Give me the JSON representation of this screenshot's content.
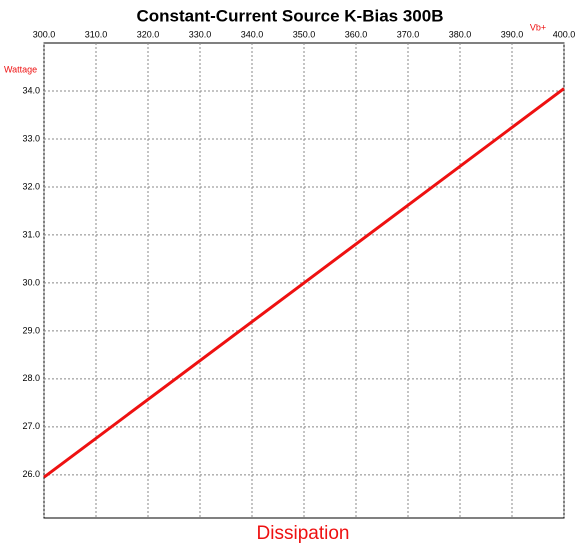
{
  "chart_data": {
    "type": "line",
    "title": "Constant-Current Source K-Bias 300B",
    "x_label": "Vb+",
    "y_label": "Wattage",
    "footer": "Dissipation",
    "x": [
      300,
      350,
      400
    ],
    "series": [
      {
        "name": "Dissipation",
        "color": "#ee1111",
        "values": [
          25.95,
          30.0,
          34.05
        ]
      }
    ],
    "xlim": [
      300,
      400
    ],
    "xticks": [
      {
        "value": 300,
        "label": "300.0"
      },
      {
        "value": 310,
        "label": "310.0"
      },
      {
        "value": 320,
        "label": "320.0"
      },
      {
        "value": 330,
        "label": "330.0"
      },
      {
        "value": 340,
        "label": "340.0"
      },
      {
        "value": 350,
        "label": "350.0"
      },
      {
        "value": 360,
        "label": "360.0"
      },
      {
        "value": 370,
        "label": "370.0"
      },
      {
        "value": 380,
        "label": "380.0"
      },
      {
        "value": 390,
        "label": "390.0"
      },
      {
        "value": 400,
        "label": "400.0"
      }
    ],
    "ylim": [
      25.1,
      35.0
    ],
    "yticks": [
      {
        "value": 26,
        "label": "26.0"
      },
      {
        "value": 27,
        "label": "27.0"
      },
      {
        "value": 28,
        "label": "28.0"
      },
      {
        "value": 29,
        "label": "29.0"
      },
      {
        "value": 30,
        "label": "30.0"
      },
      {
        "value": 31,
        "label": "31.0"
      },
      {
        "value": 32,
        "label": "32.0"
      },
      {
        "value": 33,
        "label": "33.0"
      },
      {
        "value": 34,
        "label": "34.0"
      }
    ],
    "grid": true
  }
}
